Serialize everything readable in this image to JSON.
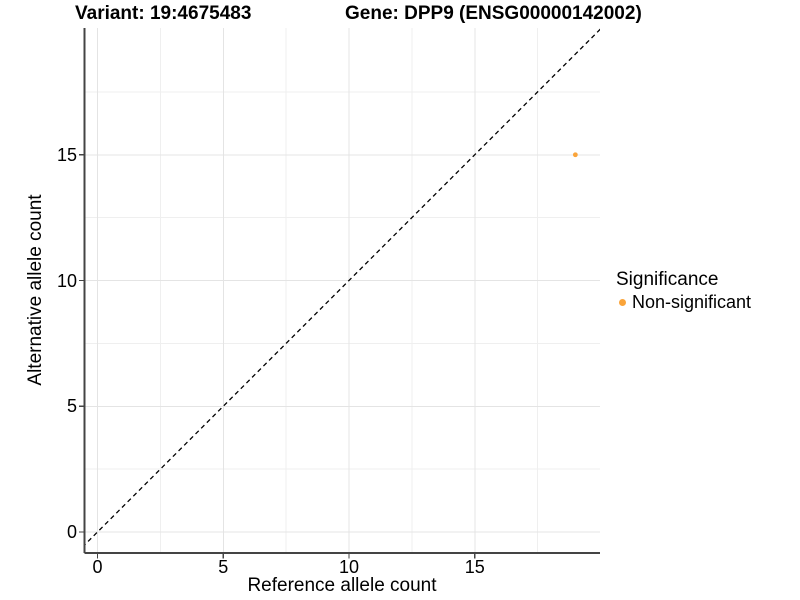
{
  "figure": {
    "background": "#FFFFFF",
    "title_left": "Variant: 19:4675483",
    "title_right": "Gene: DPP9 (ENSG00000142002)"
  },
  "chart_data": {
    "type": "scatter",
    "title": "Variant: 19:4675483   Gene: DPP9 (ENSG00000142002)",
    "xlabel": "Reference allele count",
    "ylabel": "Alternative allele count",
    "xlim": [
      -0.55,
      19.95
    ],
    "ylim": [
      -0.85,
      20.0
    ],
    "x_ticks": [
      0,
      5,
      10,
      15
    ],
    "y_ticks": [
      0,
      5,
      10,
      15
    ],
    "x_minor_ticks": [
      2.5,
      7.5,
      12.5,
      17.5
    ],
    "y_minor_ticks": [
      2.5,
      7.5,
      12.5,
      17.5
    ],
    "grid": "major+minor",
    "legend_position": "right",
    "series": [
      {
        "name": "Non-significant",
        "marker": "circle",
        "color": "#FAA43A",
        "points": [
          {
            "x": 19,
            "y": 15
          }
        ]
      }
    ],
    "reference_line": {
      "type": "identity y=x",
      "style": "dashed",
      "color": "#000000"
    },
    "legend": {
      "title": "Significance",
      "items": [
        {
          "label": "Non-significant",
          "color": "#FAA43A"
        }
      ]
    }
  },
  "colors": {
    "grid_major": "#E4E4E4",
    "grid_minor": "#EFEFEF",
    "axis_line": "#444444",
    "tick_mark": "#444444",
    "text": "#000000",
    "point": "#FAA43A"
  }
}
